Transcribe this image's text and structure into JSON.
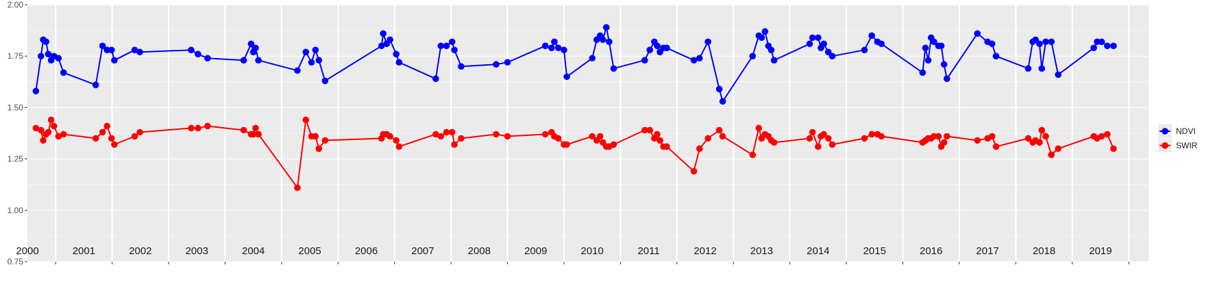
{
  "chart_data": {
    "type": "line",
    "title": "",
    "xlabel": "",
    "ylabel": "",
    "ylim": [
      0.75,
      2.0
    ],
    "xlim": [
      2000.0,
      2019.85
    ],
    "y_ticks": [
      "0.75",
      "1.00",
      "1.25",
      "1.50",
      "1.75",
      "2.00"
    ],
    "year_labels": [
      "2000",
      "2001",
      "2002",
      "2003",
      "2004",
      "2005",
      "2006",
      "2007",
      "2008",
      "2009",
      "2010",
      "2011",
      "2012",
      "2013",
      "2014",
      "2015",
      "2016",
      "2017",
      "2018",
      "2019"
    ],
    "grid": true,
    "legend_position": "right",
    "colors": {
      "panel": "#ebebeb",
      "grid": "#ffffff",
      "NDVI": "#0000ff",
      "SWIR": "#ff0000"
    },
    "series": [
      {
        "name": "NDVI",
        "color": "#0000ff",
        "points": [
          [
            2000.15,
            1.58
          ],
          [
            2000.24,
            1.75
          ],
          [
            2000.28,
            1.83
          ],
          [
            2000.33,
            1.82
          ],
          [
            2000.37,
            1.76
          ],
          [
            2000.42,
            1.73
          ],
          [
            2000.47,
            1.75
          ],
          [
            2000.55,
            1.74
          ],
          [
            2000.64,
            1.67
          ],
          [
            2001.21,
            1.61
          ],
          [
            2001.33,
            1.8
          ],
          [
            2001.41,
            1.78
          ],
          [
            2001.49,
            1.78
          ],
          [
            2001.54,
            1.73
          ],
          [
            2001.9,
            1.78
          ],
          [
            2001.99,
            1.77
          ],
          [
            2002.9,
            1.78
          ],
          [
            2003.02,
            1.76
          ],
          [
            2003.19,
            1.74
          ],
          [
            2003.83,
            1.73
          ],
          [
            2003.96,
            1.81
          ],
          [
            2004.0,
            1.77
          ],
          [
            2004.04,
            1.79
          ],
          [
            2004.09,
            1.73
          ],
          [
            2004.78,
            1.68
          ],
          [
            2004.93,
            1.77
          ],
          [
            2005.03,
            1.72
          ],
          [
            2005.1,
            1.78
          ],
          [
            2005.16,
            1.73
          ],
          [
            2005.27,
            1.63
          ],
          [
            2006.27,
            1.8
          ],
          [
            2006.3,
            1.86
          ],
          [
            2006.36,
            1.81
          ],
          [
            2006.42,
            1.83
          ],
          [
            2006.53,
            1.76
          ],
          [
            2006.58,
            1.72
          ],
          [
            2007.23,
            1.64
          ],
          [
            2007.32,
            1.8
          ],
          [
            2007.42,
            1.8
          ],
          [
            2007.52,
            1.82
          ],
          [
            2007.56,
            1.78
          ],
          [
            2007.68,
            1.7
          ],
          [
            2008.3,
            1.71
          ],
          [
            2008.5,
            1.72
          ],
          [
            2009.17,
            1.8
          ],
          [
            2009.28,
            1.79
          ],
          [
            2009.33,
            1.82
          ],
          [
            2009.4,
            1.79
          ],
          [
            2009.5,
            1.78
          ],
          [
            2009.55,
            1.65
          ],
          [
            2010.0,
            1.74
          ],
          [
            2010.08,
            1.83
          ],
          [
            2010.14,
            1.85
          ],
          [
            2010.19,
            1.83
          ],
          [
            2010.25,
            1.89
          ],
          [
            2010.3,
            1.82
          ],
          [
            2010.38,
            1.69
          ],
          [
            2010.93,
            1.73
          ],
          [
            2011.02,
            1.78
          ],
          [
            2011.1,
            1.82
          ],
          [
            2011.15,
            1.8
          ],
          [
            2011.2,
            1.77
          ],
          [
            2011.26,
            1.79
          ],
          [
            2011.32,
            1.79
          ],
          [
            2011.8,
            1.73
          ],
          [
            2011.9,
            1.74
          ],
          [
            2012.05,
            1.82
          ],
          [
            2012.25,
            1.59
          ],
          [
            2012.31,
            1.53
          ],
          [
            2012.84,
            1.75
          ],
          [
            2012.95,
            1.85
          ],
          [
            2013.0,
            1.84
          ],
          [
            2013.06,
            1.87
          ],
          [
            2013.12,
            1.8
          ],
          [
            2013.17,
            1.78
          ],
          [
            2013.22,
            1.73
          ],
          [
            2013.85,
            1.81
          ],
          [
            2013.9,
            1.84
          ],
          [
            2014.0,
            1.84
          ],
          [
            2014.05,
            1.79
          ],
          [
            2014.1,
            1.81
          ],
          [
            2014.18,
            1.77
          ],
          [
            2014.25,
            1.75
          ],
          [
            2014.82,
            1.78
          ],
          [
            2014.95,
            1.85
          ],
          [
            2015.05,
            1.82
          ],
          [
            2015.12,
            1.81
          ],
          [
            2015.85,
            1.67
          ],
          [
            2015.9,
            1.79
          ],
          [
            2015.95,
            1.73
          ],
          [
            2016.0,
            1.84
          ],
          [
            2016.05,
            1.82
          ],
          [
            2016.13,
            1.8
          ],
          [
            2016.18,
            1.8
          ],
          [
            2016.23,
            1.71
          ],
          [
            2016.28,
            1.64
          ],
          [
            2016.82,
            1.86
          ],
          [
            2017.0,
            1.82
          ],
          [
            2017.08,
            1.81
          ],
          [
            2017.15,
            1.75
          ],
          [
            2017.72,
            1.69
          ],
          [
            2017.8,
            1.82
          ],
          [
            2017.85,
            1.83
          ],
          [
            2017.92,
            1.81
          ],
          [
            2017.96,
            1.69
          ],
          [
            2018.03,
            1.82
          ],
          [
            2018.13,
            1.82
          ],
          [
            2018.25,
            1.66
          ],
          [
            2018.88,
            1.79
          ],
          [
            2018.94,
            1.82
          ],
          [
            2019.02,
            1.82
          ],
          [
            2019.12,
            1.8
          ],
          [
            2019.23,
            1.8
          ]
        ]
      },
      {
        "name": "SWIR",
        "color": "#ff0000",
        "points": [
          [
            2000.15,
            1.4
          ],
          [
            2000.24,
            1.39
          ],
          [
            2000.28,
            1.34
          ],
          [
            2000.33,
            1.37
          ],
          [
            2000.37,
            1.38
          ],
          [
            2000.42,
            1.44
          ],
          [
            2000.47,
            1.41
          ],
          [
            2000.55,
            1.36
          ],
          [
            2000.64,
            1.37
          ],
          [
            2001.21,
            1.35
          ],
          [
            2001.33,
            1.38
          ],
          [
            2001.41,
            1.41
          ],
          [
            2001.49,
            1.35
          ],
          [
            2001.54,
            1.32
          ],
          [
            2001.9,
            1.36
          ],
          [
            2001.99,
            1.38
          ],
          [
            2002.9,
            1.4
          ],
          [
            2003.02,
            1.4
          ],
          [
            2003.19,
            1.41
          ],
          [
            2003.83,
            1.39
          ],
          [
            2003.96,
            1.37
          ],
          [
            2004.0,
            1.37
          ],
          [
            2004.04,
            1.4
          ],
          [
            2004.09,
            1.37
          ],
          [
            2004.78,
            1.11
          ],
          [
            2004.93,
            1.44
          ],
          [
            2005.03,
            1.36
          ],
          [
            2005.1,
            1.36
          ],
          [
            2005.16,
            1.3
          ],
          [
            2005.27,
            1.34
          ],
          [
            2006.27,
            1.35
          ],
          [
            2006.3,
            1.37
          ],
          [
            2006.36,
            1.37
          ],
          [
            2006.42,
            1.36
          ],
          [
            2006.53,
            1.34
          ],
          [
            2006.58,
            1.31
          ],
          [
            2007.23,
            1.37
          ],
          [
            2007.32,
            1.36
          ],
          [
            2007.42,
            1.38
          ],
          [
            2007.52,
            1.38
          ],
          [
            2007.56,
            1.32
          ],
          [
            2007.68,
            1.35
          ],
          [
            2008.3,
            1.37
          ],
          [
            2008.5,
            1.36
          ],
          [
            2009.17,
            1.37
          ],
          [
            2009.28,
            1.38
          ],
          [
            2009.33,
            1.36
          ],
          [
            2009.4,
            1.35
          ],
          [
            2009.5,
            1.32
          ],
          [
            2009.55,
            1.32
          ],
          [
            2010.0,
            1.36
          ],
          [
            2010.08,
            1.34
          ],
          [
            2010.14,
            1.36
          ],
          [
            2010.19,
            1.33
          ],
          [
            2010.25,
            1.31
          ],
          [
            2010.3,
            1.31
          ],
          [
            2010.38,
            1.32
          ],
          [
            2010.93,
            1.39
          ],
          [
            2011.02,
            1.39
          ],
          [
            2011.1,
            1.35
          ],
          [
            2011.15,
            1.37
          ],
          [
            2011.2,
            1.34
          ],
          [
            2011.26,
            1.31
          ],
          [
            2011.32,
            1.31
          ],
          [
            2011.8,
            1.19
          ],
          [
            2011.9,
            1.3
          ],
          [
            2012.05,
            1.35
          ],
          [
            2012.25,
            1.39
          ],
          [
            2012.31,
            1.36
          ],
          [
            2012.84,
            1.27
          ],
          [
            2012.95,
            1.4
          ],
          [
            2013.0,
            1.35
          ],
          [
            2013.06,
            1.37
          ],
          [
            2013.12,
            1.36
          ],
          [
            2013.17,
            1.34
          ],
          [
            2013.22,
            1.33
          ],
          [
            2013.85,
            1.35
          ],
          [
            2013.9,
            1.38
          ],
          [
            2014.0,
            1.31
          ],
          [
            2014.05,
            1.36
          ],
          [
            2014.1,
            1.37
          ],
          [
            2014.18,
            1.35
          ],
          [
            2014.25,
            1.32
          ],
          [
            2014.82,
            1.35
          ],
          [
            2014.95,
            1.37
          ],
          [
            2015.05,
            1.37
          ],
          [
            2015.12,
            1.36
          ],
          [
            2015.85,
            1.33
          ],
          [
            2015.9,
            1.34
          ],
          [
            2015.95,
            1.35
          ],
          [
            2016.0,
            1.35
          ],
          [
            2016.05,
            1.36
          ],
          [
            2016.13,
            1.36
          ],
          [
            2016.18,
            1.31
          ],
          [
            2016.23,
            1.33
          ],
          [
            2016.28,
            1.36
          ],
          [
            2016.82,
            1.34
          ],
          [
            2017.0,
            1.35
          ],
          [
            2017.08,
            1.36
          ],
          [
            2017.15,
            1.31
          ],
          [
            2017.72,
            1.35
          ],
          [
            2017.8,
            1.33
          ],
          [
            2017.85,
            1.34
          ],
          [
            2017.92,
            1.33
          ],
          [
            2017.96,
            1.39
          ],
          [
            2018.03,
            1.36
          ],
          [
            2018.13,
            1.27
          ],
          [
            2018.25,
            1.3
          ],
          [
            2018.88,
            1.36
          ],
          [
            2018.94,
            1.35
          ],
          [
            2019.02,
            1.36
          ],
          [
            2019.12,
            1.37
          ],
          [
            2019.23,
            1.3
          ]
        ]
      }
    ]
  }
}
